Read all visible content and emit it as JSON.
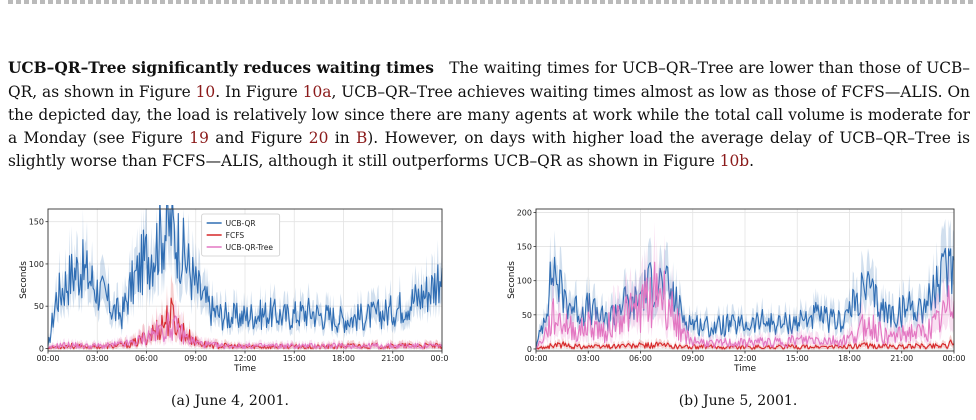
{
  "paragraph": {
    "heading": "UCB–QR–Tree significantly reduces waiting times",
    "s1": "The waiting times for UCB–QR–Tree are lower than those of UCB–QR, as shown in Figure ",
    "r1": "10",
    "s2": ". In Figure ",
    "r2": "10a",
    "s3": ", UCB–QR–Tree achieves waiting times almost as low as those of FCFS—ALIS. On the depicted day, the load is relatively low since there are many agents at work while the total call volume is moderate for a Monday (see Figure ",
    "r3": "19",
    "s4": " and Figure ",
    "r4": "20",
    "s5": " in ",
    "r5": "B",
    "s6": "). However, on days with higher load the average delay of UCB–QR–Tree is slightly worse than FCFS—ALIS, although it still outperforms UCB–QR as shown in Figure ",
    "r6": "10b",
    "s7": "."
  },
  "figures": [
    {
      "caption": "(a) June 4, 2001."
    },
    {
      "caption": "(b) June 5, 2001."
    }
  ],
  "colors": {
    "ucb_qr": "#2f6db3",
    "fcfs": "#d62728",
    "tree": "#e377c2",
    "band": "#a9c7e8"
  },
  "chart_data": [
    {
      "type": "line",
      "xlabel": "Time",
      "ylabel": "Seconds",
      "x_ticks": [
        "00:00",
        "03:00",
        "06:00",
        "09:00",
        "12:00",
        "15:00",
        "18:00",
        "21:00",
        "00:00"
      ],
      "y_ticks": [
        0,
        50,
        100,
        150
      ],
      "ylim": [
        -3,
        165
      ],
      "xlim_hours": [
        0,
        24
      ],
      "grid": true,
      "legend": "top-center",
      "x_hours": [
        0,
        0.5,
        1,
        1.5,
        2,
        2.5,
        3,
        3.5,
        4,
        4.5,
        5,
        5.5,
        6,
        6.5,
        7,
        7.5,
        8,
        8.5,
        9,
        9.5,
        10,
        10.5,
        11,
        11.5,
        12,
        12.5,
        13,
        13.5,
        14,
        14.5,
        15,
        15.5,
        16,
        16.5,
        17,
        17.5,
        18,
        18.5,
        19,
        19.5,
        20,
        20.5,
        21,
        21.5,
        22,
        22.5,
        23,
        23.5,
        24
      ],
      "series": [
        {
          "name": "UCB-QR",
          "values": [
            0,
            60,
            75,
            90,
            95,
            85,
            70,
            60,
            45,
            40,
            70,
            90,
            110,
            120,
            140,
            145,
            125,
            100,
            75,
            58,
            45,
            40,
            38,
            37,
            38,
            40,
            40,
            42,
            40,
            38,
            40,
            42,
            44,
            40,
            38,
            36,
            35,
            36,
            37,
            38,
            40,
            42,
            45,
            50,
            55,
            60,
            66,
            75,
            95
          ]
        },
        {
          "name": "FCFS",
          "values": [
            0,
            2,
            3,
            3,
            2,
            2,
            2,
            2,
            3,
            4,
            5,
            8,
            15,
            20,
            30,
            38,
            25,
            15,
            8,
            5,
            4,
            3,
            3,
            2,
            2,
            2,
            2,
            2,
            2,
            2,
            2,
            2,
            2,
            2,
            2,
            2,
            3,
            3,
            3,
            3,
            3,
            3,
            3,
            3,
            3,
            3,
            3,
            3,
            2
          ]
        },
        {
          "name": "UCB-QR-Tree",
          "values": [
            0,
            3,
            4,
            4,
            3,
            3,
            3,
            3,
            4,
            5,
            6,
            9,
            14,
            18,
            22,
            28,
            20,
            12,
            7,
            5,
            4,
            3,
            3,
            3,
            3,
            3,
            3,
            3,
            3,
            3,
            3,
            3,
            3,
            3,
            3,
            3,
            3,
            3,
            3,
            3,
            3,
            3,
            3,
            3,
            3,
            3,
            3,
            3,
            2
          ]
        }
      ]
    },
    {
      "type": "line",
      "xlabel": "Time",
      "ylabel": "Seconds",
      "x_ticks": [
        "00:00",
        "03:00",
        "06:00",
        "09:00",
        "12:00",
        "15:00",
        "18:00",
        "21:00",
        "00:00"
      ],
      "y_ticks": [
        0,
        50,
        100,
        150,
        200
      ],
      "ylim": [
        -3,
        205
      ],
      "xlim_hours": [
        0,
        24
      ],
      "grid": true,
      "x_hours": [
        0,
        0.5,
        1,
        1.5,
        2,
        2.5,
        3,
        3.5,
        4,
        4.5,
        5,
        5.5,
        6,
        6.5,
        7,
        7.5,
        8,
        8.5,
        9,
        9.5,
        10,
        10.5,
        11,
        11.5,
        12,
        12.5,
        13,
        13.5,
        14,
        14.5,
        15,
        15.5,
        16,
        16.5,
        17,
        17.5,
        18,
        18.5,
        19,
        19.5,
        20,
        20.5,
        21,
        21.5,
        22,
        22.5,
        23,
        23.5,
        24
      ],
      "series": [
        {
          "name": "UCB-QR",
          "values": [
            0,
            50,
            120,
            80,
            65,
            55,
            60,
            50,
            40,
            55,
            70,
            60,
            80,
            95,
            100,
            90,
            70,
            45,
            38,
            35,
            32,
            33,
            35,
            34,
            35,
            37,
            40,
            38,
            36,
            38,
            40,
            45,
            48,
            45,
            40,
            42,
            55,
            75,
            90,
            70,
            55,
            50,
            55,
            65,
            60,
            70,
            90,
            110,
            130
          ]
        },
        {
          "name": "FCFS",
          "values": [
            0,
            3,
            5,
            6,
            4,
            4,
            4,
            3,
            4,
            4,
            5,
            4,
            5,
            5,
            6,
            5,
            4,
            3,
            3,
            3,
            3,
            3,
            3,
            3,
            3,
            3,
            3,
            3,
            3,
            3,
            3,
            3,
            3,
            3,
            3,
            3,
            4,
            4,
            5,
            4,
            4,
            3,
            3,
            4,
            4,
            4,
            5,
            6,
            8
          ]
        },
        {
          "name": "UCB-QR-Tree",
          "values": [
            0,
            20,
            45,
            40,
            30,
            25,
            35,
            30,
            25,
            45,
            55,
            50,
            60,
            75,
            90,
            70,
            45,
            20,
            12,
            10,
            8,
            8,
            9,
            8,
            9,
            10,
            10,
            10,
            10,
            12,
            12,
            13,
            14,
            13,
            12,
            12,
            15,
            25,
            40,
            30,
            20,
            18,
            20,
            25,
            22,
            28,
            35,
            50,
            70
          ]
        }
      ]
    }
  ]
}
